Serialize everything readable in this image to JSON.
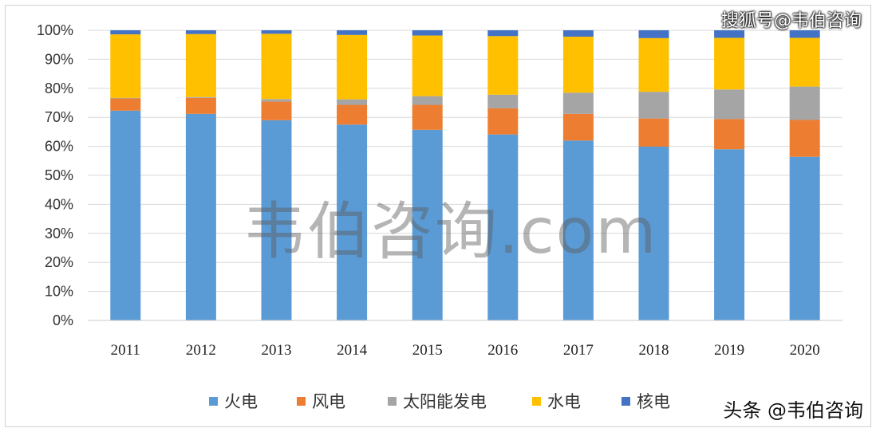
{
  "chart_data": {
    "type": "bar",
    "stacked": true,
    "categories": [
      "2011",
      "2012",
      "2013",
      "2014",
      "2015",
      "2016",
      "2017",
      "2018",
      "2019",
      "2020"
    ],
    "ylim": [
      0,
      100
    ],
    "yticks": [
      "0%",
      "10%",
      "20%",
      "30%",
      "40%",
      "50%",
      "60%",
      "70%",
      "80%",
      "90%",
      "100%"
    ],
    "grid": true,
    "legend_position": "bottom",
    "series": [
      {
        "name": "火电",
        "color": "#5b9bd5",
        "values": [
          72.3,
          71.2,
          69.0,
          67.5,
          65.7,
          64.1,
          62.0,
          59.9,
          59.0,
          56.4
        ]
      },
      {
        "name": "风电",
        "color": "#ed7d31",
        "values": [
          4.2,
          5.5,
          6.4,
          6.8,
          8.6,
          9.0,
          9.2,
          9.7,
          10.4,
          12.7
        ]
      },
      {
        "name": "太阳能发电",
        "color": "#a5a5a5",
        "values": [
          0.2,
          0.3,
          0.9,
          1.9,
          3.0,
          4.7,
          7.3,
          9.2,
          10.2,
          11.5
        ]
      },
      {
        "name": "水电",
        "color": "#ffc000",
        "values": [
          21.9,
          21.7,
          22.5,
          22.2,
          20.9,
          20.2,
          19.3,
          18.5,
          17.8,
          16.8
        ]
      },
      {
        "name": "核电",
        "color": "#4472c4",
        "values": [
          1.4,
          1.3,
          1.2,
          1.6,
          1.8,
          2.0,
          2.2,
          2.7,
          2.6,
          2.6
        ]
      }
    ]
  },
  "watermarks": {
    "top_right": "搜狐号@韦伯咨询",
    "center": "韦伯咨询.com",
    "bottom_right": "头条 @韦伯咨询"
  }
}
